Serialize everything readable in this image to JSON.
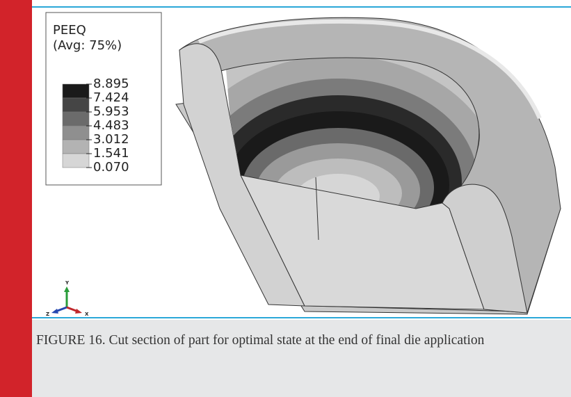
{
  "figure": {
    "legend": {
      "title": "PEEQ",
      "subtitle": "(Avg: 75%)",
      "labels": [
        "8.895",
        "7.424",
        "5.953",
        "4.483",
        "3.012",
        "1.541",
        "0.070"
      ]
    },
    "triad": {
      "y": "Y",
      "z": "Z",
      "x": "X"
    },
    "caption": "FIGURE 16. Cut section of part for optimal state at the end of final die application"
  }
}
